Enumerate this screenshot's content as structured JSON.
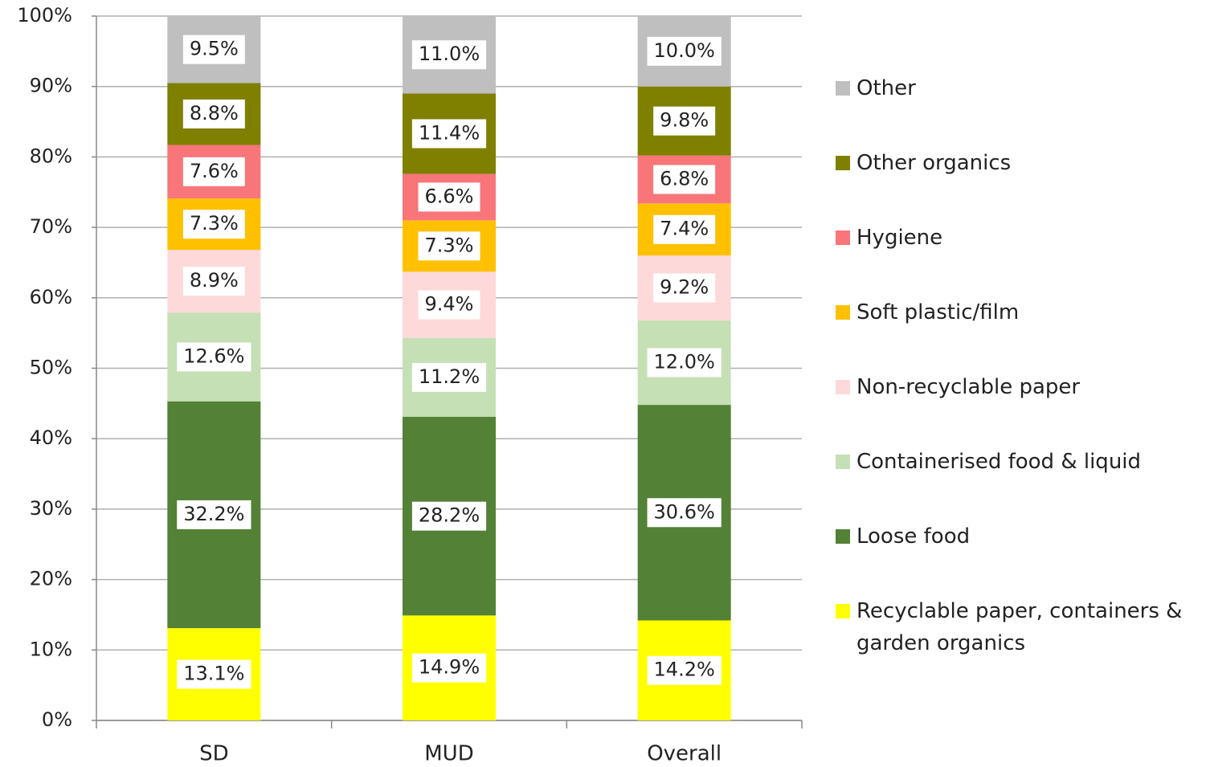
{
  "chart_data": {
    "type": "stacked-bar",
    "categories": [
      "SD",
      "MUD",
      "Overall"
    ],
    "ylim": [
      0,
      100
    ],
    "yticks": [
      {
        "value": 0,
        "label": "0%"
      },
      {
        "value": 10,
        "label": "10%"
      },
      {
        "value": 20,
        "label": "20%"
      },
      {
        "value": 30,
        "label": "30%"
      },
      {
        "value": 40,
        "label": "40%"
      },
      {
        "value": 50,
        "label": "50%"
      },
      {
        "value": 60,
        "label": "60%"
      },
      {
        "value": 70,
        "label": "70%"
      },
      {
        "value": 80,
        "label": "80%"
      },
      {
        "value": 90,
        "label": "90%"
      },
      {
        "value": 100,
        "label": "100%"
      }
    ],
    "grid": true,
    "legend": "right",
    "series": [
      {
        "name": "Recyclable paper, containers & garden organics",
        "color": "#ffff00",
        "values": [
          13.1,
          14.9,
          14.2
        ],
        "value_labels": [
          "13.1%",
          "14.9%",
          "14.2%"
        ]
      },
      {
        "name": "Loose food",
        "color": "#538135",
        "values": [
          32.2,
          28.2,
          30.6
        ],
        "value_labels": [
          "32.2%",
          "28.2%",
          "30.6%"
        ]
      },
      {
        "name": "Containerised food & liquid",
        "color": "#c5e0b4",
        "values": [
          12.6,
          11.2,
          12.0
        ],
        "value_labels": [
          "12.6%",
          "11.2%",
          "12.0%"
        ]
      },
      {
        "name": "Non-recyclable paper",
        "color": "#fdd9d9",
        "values": [
          8.9,
          9.4,
          9.2
        ],
        "value_labels": [
          "8.9%",
          "9.4%",
          "9.2%"
        ]
      },
      {
        "name": "Soft plastic/film",
        "color": "#ffc000",
        "values": [
          7.3,
          7.3,
          7.4
        ],
        "value_labels": [
          "7.3%",
          "7.3%",
          "7.4%"
        ]
      },
      {
        "name": "Hygiene",
        "color": "#f8757a",
        "values": [
          7.6,
          6.6,
          6.8
        ],
        "value_labels": [
          "7.6%",
          "6.6%",
          "6.8%"
        ]
      },
      {
        "name": "Other organics",
        "color": "#7f7f00",
        "values": [
          8.8,
          11.4,
          9.8
        ],
        "value_labels": [
          "8.8%",
          "11.4%",
          "9.8%"
        ]
      },
      {
        "name": "Other",
        "color": "#bfbfbf",
        "values": [
          9.5,
          11.0,
          10.0
        ],
        "value_labels": [
          "9.5%",
          "11.0%",
          "10.0%"
        ]
      }
    ]
  }
}
